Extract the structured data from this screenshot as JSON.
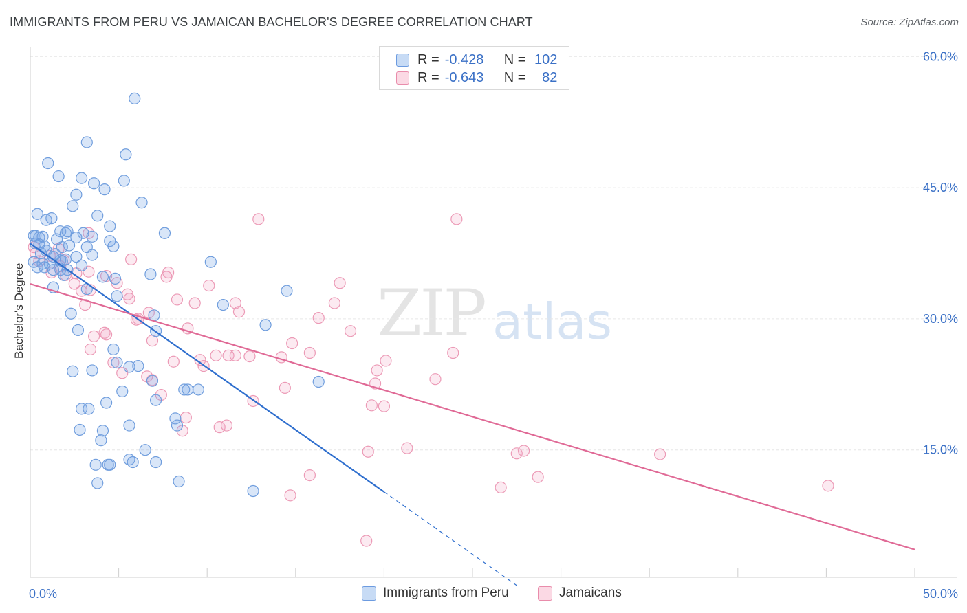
{
  "title": "IMMIGRANTS FROM PERU VS JAMAICAN BACHELOR'S DEGREE CORRELATION CHART",
  "source": "Source: ZipAtlas.com",
  "watermark": {
    "zip": "ZIP",
    "atlas": "atlas"
  },
  "legend": {
    "r_label": "R =",
    "n_label": "N =",
    "rows": [
      {
        "r": "-0.428",
        "n": "102",
        "color": "#a9c7f1",
        "border": "#6c9be0"
      },
      {
        "r": "-0.643",
        "n": "82",
        "color": "#f7c3d4",
        "border": "#e98cab"
      }
    ]
  },
  "bottom_legend": [
    {
      "label": "Immigrants from Peru",
      "color": "#a9c7f1",
      "border": "#6c9be0"
    },
    {
      "label": "Jamaicans",
      "color": "#f7c3d4",
      "border": "#e98cab"
    }
  ],
  "colors": {
    "peru_fill": "rgba(120,165,230,0.28)",
    "peru_stroke": "#6f9ddd",
    "peru_line": "#2f6fce",
    "jam_fill": "rgba(240,160,190,0.22)",
    "jam_stroke": "#ec9ab6",
    "jam_line": "#e06a96",
    "axis_text": "#3a70c6",
    "grid": "#e6e6e6"
  },
  "chart_data": {
    "type": "scatter",
    "xlabel": "",
    "ylabel": "Bachelor's Degree",
    "xlim": [
      0,
      50
    ],
    "ylim": [
      0,
      62
    ],
    "x_tick_labels": [
      {
        "value": 0,
        "label": "0.0%"
      },
      {
        "value": 50,
        "label": "50.0%"
      }
    ],
    "x_minor_ticks": [
      5,
      10,
      15,
      20,
      25,
      30,
      35,
      40,
      45,
      50
    ],
    "y_ticks": [
      {
        "value": 15,
        "label": "15.0%"
      },
      {
        "value": 30,
        "label": "30.0%"
      },
      {
        "value": 45,
        "label": "45.0%"
      },
      {
        "value": 60,
        "label": "60.0%"
      }
    ],
    "grid": true,
    "series": [
      {
        "name": "Immigrants from Peru",
        "points": [
          [
            5.9,
            55.2
          ],
          [
            3.2,
            50.2
          ],
          [
            5.4,
            48.8
          ],
          [
            1,
            47.8
          ],
          [
            1.6,
            46.3
          ],
          [
            2.9,
            46.1
          ],
          [
            3.6,
            45.5
          ],
          [
            5.3,
            45.8
          ],
          [
            4.2,
            44.8
          ],
          [
            2.6,
            44.2
          ],
          [
            6.3,
            43.3
          ],
          [
            2.4,
            42.9
          ],
          [
            0.4,
            42
          ],
          [
            0.9,
            41.3
          ],
          [
            1.2,
            41.5
          ],
          [
            3.8,
            41.8
          ],
          [
            4.5,
            40.6
          ],
          [
            1.7,
            40
          ],
          [
            2,
            39.8
          ],
          [
            3,
            39.8
          ],
          [
            7.6,
            39.8
          ],
          [
            0.2,
            39.5
          ],
          [
            0.5,
            39.3
          ],
          [
            0.7,
            39.4
          ],
          [
            1.5,
            39.1
          ],
          [
            2.6,
            39.3
          ],
          [
            3.5,
            39.4
          ],
          [
            4.5,
            38.9
          ],
          [
            0.3,
            38.6
          ],
          [
            0.8,
            38.3
          ],
          [
            1.8,
            38.2
          ],
          [
            2.2,
            38.4
          ],
          [
            3.2,
            38.2
          ],
          [
            4.7,
            38.3
          ],
          [
            0.6,
            37.5
          ],
          [
            0.9,
            37.8
          ],
          [
            1.3,
            37.1
          ],
          [
            1.8,
            36.6
          ],
          [
            2.6,
            37.1
          ],
          [
            3.5,
            37.3
          ],
          [
            0.2,
            36.5
          ],
          [
            0.7,
            36.3
          ],
          [
            1.1,
            36.3
          ],
          [
            1.7,
            36.7
          ],
          [
            2,
            36.8
          ],
          [
            2.9,
            36.1
          ],
          [
            10.2,
            36.5
          ],
          [
            0.4,
            35.9
          ],
          [
            0.8,
            35.9
          ],
          [
            1.3,
            35.6
          ],
          [
            1.7,
            35.6
          ],
          [
            2.1,
            35.6
          ],
          [
            1.9,
            35
          ],
          [
            6.8,
            35.1
          ],
          [
            4.1,
            34.8
          ],
          [
            4.8,
            34.6
          ],
          [
            1.3,
            33.6
          ],
          [
            3.2,
            33.4
          ],
          [
            14.5,
            33.2
          ],
          [
            4.9,
            32.6
          ],
          [
            10.9,
            31.6
          ],
          [
            2.3,
            30.6
          ],
          [
            7,
            30.4
          ],
          [
            13.3,
            29.3
          ],
          [
            2.7,
            28.7
          ],
          [
            7.1,
            28.6
          ],
          [
            4.7,
            26.5
          ],
          [
            4.9,
            25
          ],
          [
            5.6,
            24.5
          ],
          [
            6.1,
            24.6
          ],
          [
            2.4,
            24
          ],
          [
            3.5,
            24.1
          ],
          [
            16.3,
            22.8
          ],
          [
            6.9,
            22.9
          ],
          [
            5.2,
            21.7
          ],
          [
            8.7,
            21.9
          ],
          [
            8.9,
            21.9
          ],
          [
            9.5,
            21.9
          ],
          [
            4.3,
            20.4
          ],
          [
            7.1,
            20.7
          ],
          [
            2.9,
            19.7
          ],
          [
            3.3,
            19.7
          ],
          [
            8.2,
            18.6
          ],
          [
            5.6,
            17.8
          ],
          [
            8.3,
            17.8
          ],
          [
            2.8,
            17.3
          ],
          [
            4.1,
            17.2
          ],
          [
            4,
            16.1
          ],
          [
            6.5,
            15
          ],
          [
            5.6,
            13.9
          ],
          [
            5.8,
            13.6
          ],
          [
            7.1,
            13.6
          ],
          [
            3.7,
            13.3
          ],
          [
            4.4,
            13.3
          ],
          [
            4.5,
            13.3
          ],
          [
            3.8,
            11.2
          ],
          [
            8.4,
            11.4
          ],
          [
            12.6,
            10.3
          ],
          [
            0.3,
            39.5
          ],
          [
            2.1,
            40
          ],
          [
            0.5,
            38.5
          ],
          [
            1.4,
            37.4
          ]
        ]
      },
      {
        "name": "Jamaicans",
        "points": [
          [
            12.9,
            41.4
          ],
          [
            24.1,
            41.4
          ],
          [
            1.6,
            38
          ],
          [
            0.2,
            38.2
          ],
          [
            3.3,
            39.8
          ],
          [
            1.1,
            37.2
          ],
          [
            5.7,
            36.8
          ],
          [
            0.3,
            37.5
          ],
          [
            0.5,
            36.6
          ],
          [
            1.9,
            36.7
          ],
          [
            1.7,
            36
          ],
          [
            1.2,
            35.3
          ],
          [
            2,
            35
          ],
          [
            2.6,
            35.2
          ],
          [
            3.3,
            35.4
          ],
          [
            7.8,
            35.3
          ],
          [
            7.7,
            34.8
          ],
          [
            4.3,
            34.9
          ],
          [
            4.9,
            34.1
          ],
          [
            17.5,
            34.1
          ],
          [
            2.5,
            34
          ],
          [
            10.1,
            33.8
          ],
          [
            3.4,
            33.3
          ],
          [
            2.9,
            33.2
          ],
          [
            5.5,
            32.8
          ],
          [
            5.6,
            32.3
          ],
          [
            8.3,
            32.2
          ],
          [
            9.3,
            31.8
          ],
          [
            11.6,
            31.8
          ],
          [
            17.2,
            31.8
          ],
          [
            3.1,
            31.6
          ],
          [
            6.7,
            30.7
          ],
          [
            11.8,
            30.8
          ],
          [
            6.1,
            30
          ],
          [
            6,
            29.9
          ],
          [
            16.3,
            30.1
          ],
          [
            8.9,
            28.9
          ],
          [
            18.1,
            28.6
          ],
          [
            3.6,
            28
          ],
          [
            4.3,
            28.2
          ],
          [
            6.9,
            27.5
          ],
          [
            14.8,
            27.2
          ],
          [
            3.4,
            26.5
          ],
          [
            15.8,
            26.1
          ],
          [
            23.9,
            26.1
          ],
          [
            10.5,
            25.8
          ],
          [
            11.2,
            25.8
          ],
          [
            11.6,
            25.8
          ],
          [
            12.4,
            25.7
          ],
          [
            14.2,
            25.6
          ],
          [
            9.6,
            25.3
          ],
          [
            20.1,
            25.2
          ],
          [
            4.7,
            25
          ],
          [
            8.1,
            25.1
          ],
          [
            9.8,
            24.6
          ],
          [
            19.6,
            24.1
          ],
          [
            5.2,
            23.8
          ],
          [
            6.6,
            23.4
          ],
          [
            22.9,
            23.1
          ],
          [
            6.9,
            23
          ],
          [
            19.5,
            22.6
          ],
          [
            14.4,
            22.1
          ],
          [
            7.4,
            21.3
          ],
          [
            12.6,
            20.6
          ],
          [
            19.3,
            20.1
          ],
          [
            20,
            20
          ],
          [
            8.8,
            18.7
          ],
          [
            8.6,
            17.2
          ],
          [
            10.7,
            17.6
          ],
          [
            11.1,
            17.8
          ],
          [
            21.3,
            15.2
          ],
          [
            27.5,
            14.6
          ],
          [
            27.9,
            14.9
          ],
          [
            35.6,
            14.5
          ],
          [
            19.1,
            14.8
          ],
          [
            15.8,
            12.1
          ],
          [
            28.7,
            11.9
          ],
          [
            26.6,
            10.7
          ],
          [
            45.1,
            10.9
          ],
          [
            14.7,
            9.8
          ],
          [
            19,
            4.6
          ],
          [
            4.2,
            28.4
          ]
        ]
      }
    ],
    "trend_lines": [
      {
        "series": "Immigrants from Peru",
        "from": [
          0,
          38.6
        ],
        "to": [
          20,
          10.2
        ],
        "dashed_to": [
          27.5,
          -0.5
        ]
      },
      {
        "series": "Jamaicans",
        "from": [
          0,
          34
        ],
        "to": [
          50,
          3.6
        ]
      }
    ]
  }
}
